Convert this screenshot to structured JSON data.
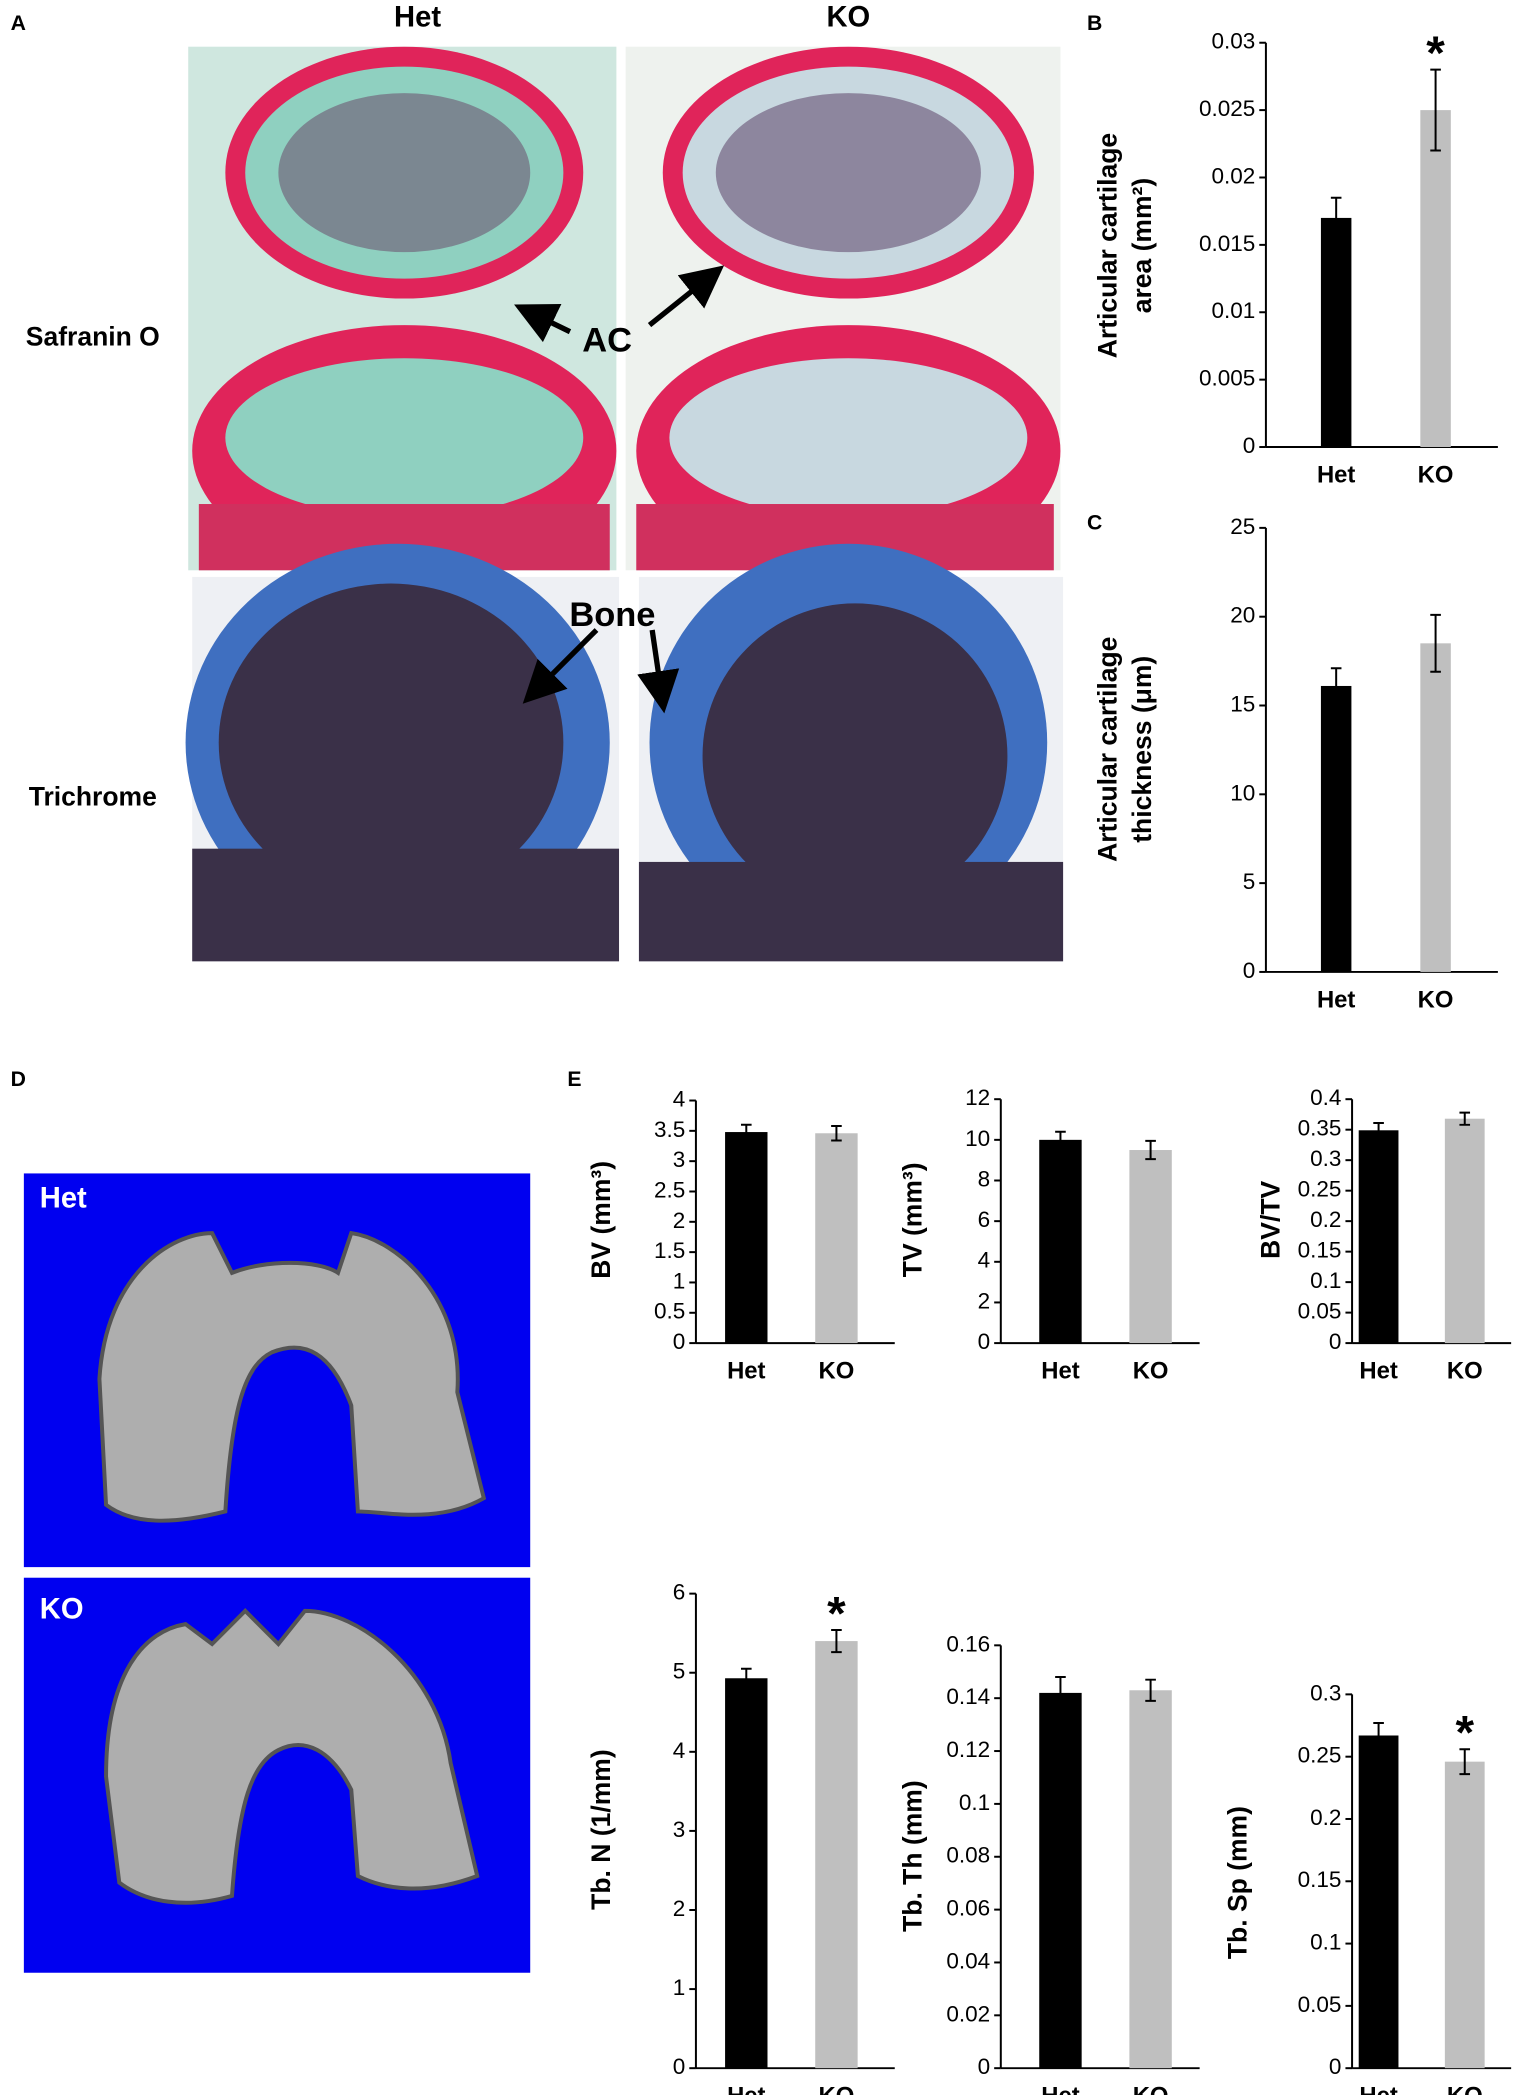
{
  "figure": {
    "panel_labels": [
      "A",
      "B",
      "C",
      "D",
      "E"
    ],
    "histology": {
      "columns": [
        "Het",
        "KO"
      ],
      "rows": [
        "Safranin O",
        "Trichrome"
      ],
      "annotations": [
        "AC",
        "Bone"
      ]
    },
    "microct": {
      "labels": [
        "Het",
        "KO"
      ]
    }
  },
  "chart_data": [
    {
      "type": "bar",
      "ylabel": [
        "Articular cartilage",
        "area (mm²)"
      ],
      "categories": [
        "Het",
        "KO"
      ],
      "values": [
        0.017,
        0.025
      ],
      "errors": [
        0.0015,
        0.003
      ],
      "colors": [
        "#000000",
        "#bfbfbf"
      ],
      "significance": [
        null,
        "*"
      ],
      "ylim": [
        0,
        0.03
      ],
      "yticks": [
        0,
        0.005,
        0.01,
        0.015,
        0.02,
        0.025,
        0.03
      ]
    },
    {
      "type": "bar",
      "ylabel": [
        "Articular cartilage",
        "thickness (μm)"
      ],
      "categories": [
        "Het",
        "KO"
      ],
      "values": [
        16.1,
        18.5
      ],
      "errors": [
        1.0,
        1.6
      ],
      "colors": [
        "#000000",
        "#bfbfbf"
      ],
      "ylim": [
        0,
        25
      ],
      "yticks": [
        0,
        5,
        10,
        15,
        20,
        25
      ]
    },
    {
      "type": "bar",
      "ylabel": [
        "BV (mm³)"
      ],
      "categories": [
        "Het",
        "KO"
      ],
      "values": [
        3.48,
        3.46
      ],
      "errors": [
        0.12,
        0.12
      ],
      "colors": [
        "#000000",
        "#bfbfbf"
      ],
      "ylim": [
        0,
        4
      ],
      "yticks": [
        0,
        0.5,
        1,
        1.5,
        2,
        2.5,
        3,
        3.5,
        4
      ]
    },
    {
      "type": "bar",
      "ylabel": [
        "TV (mm³)"
      ],
      "categories": [
        "Het",
        "KO"
      ],
      "values": [
        10.0,
        9.5
      ],
      "errors": [
        0.4,
        0.45
      ],
      "colors": [
        "#000000",
        "#bfbfbf"
      ],
      "ylim": [
        0,
        12
      ],
      "yticks": [
        0,
        2,
        4,
        6,
        8,
        10,
        12
      ]
    },
    {
      "type": "bar",
      "ylabel": [
        "BV/TV"
      ],
      "categories": [
        "Het",
        "KO"
      ],
      "values": [
        0.349,
        0.368
      ],
      "errors": [
        0.012,
        0.01
      ],
      "colors": [
        "#000000",
        "#bfbfbf"
      ],
      "ylim": [
        0,
        0.4
      ],
      "yticks": [
        0,
        0.05,
        0.1,
        0.15,
        0.2,
        0.25,
        0.3,
        0.35,
        0.4
      ]
    },
    {
      "type": "bar",
      "ylabel": [
        "Tb. N (1/mm)"
      ],
      "categories": [
        "Het",
        "KO"
      ],
      "values": [
        4.93,
        5.4
      ],
      "errors": [
        0.12,
        0.14
      ],
      "colors": [
        "#000000",
        "#bfbfbf"
      ],
      "significance": [
        null,
        "*"
      ],
      "ylim": [
        0,
        6
      ],
      "yticks": [
        0,
        1,
        2,
        3,
        4,
        5,
        6
      ]
    },
    {
      "type": "bar",
      "ylabel": [
        "Tb. Th (mm)"
      ],
      "categories": [
        "Het",
        "KO"
      ],
      "values": [
        0.142,
        0.143
      ],
      "errors": [
        0.006,
        0.004
      ],
      "colors": [
        "#000000",
        "#bfbfbf"
      ],
      "ylim": [
        0,
        0.16
      ],
      "yticks": [
        0,
        0.02,
        0.04,
        0.06,
        0.08,
        0.1,
        0.12,
        0.14,
        0.16
      ]
    },
    {
      "type": "bar",
      "ylabel": [
        "Tb. Sp (mm)"
      ],
      "categories": [
        "Het",
        "KO"
      ],
      "values": [
        0.267,
        0.246
      ],
      "errors": [
        0.01,
        0.01
      ],
      "colors": [
        "#000000",
        "#bfbfbf"
      ],
      "significance": [
        null,
        "*"
      ],
      "ylim": [
        0,
        0.3
      ],
      "yticks": [
        0,
        0.05,
        0.1,
        0.15,
        0.2,
        0.25,
        0.3
      ]
    }
  ]
}
